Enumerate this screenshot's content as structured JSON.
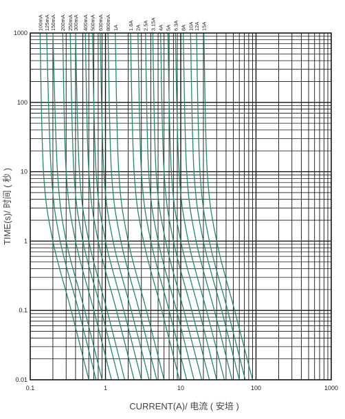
{
  "chart_data": {
    "type": "line",
    "xlabel": "CURRENT(A)/ 电流 ( 安培 )",
    "ylabel": "TIME(s)/ 时间 ( 秒 )",
    "xscale": "log",
    "yscale": "log",
    "xlim": [
      0.1,
      1000
    ],
    "ylim": [
      0.01,
      1000
    ],
    "x_ticks": [
      "0.1",
      "1",
      "10",
      "100",
      "1000"
    ],
    "y_ticks": [
      "1000",
      "100",
      "10",
      "1",
      "0.1",
      "0.01"
    ],
    "grid": true,
    "line_color": "#1f8a6a",
    "series": [
      {
        "name": "100mA",
        "points": [
          [
            0.135,
            1000
          ],
          [
            0.15,
            10
          ],
          [
            0.2,
            1
          ],
          [
            0.35,
            0.1
          ],
          [
            0.6,
            0.01
          ]
        ]
      },
      {
        "name": "125mA",
        "points": [
          [
            0.165,
            1000
          ],
          [
            0.19,
            10
          ],
          [
            0.25,
            1
          ],
          [
            0.44,
            0.1
          ],
          [
            0.75,
            0.01
          ]
        ]
      },
      {
        "name": "150mA",
        "points": [
          [
            0.2,
            1000
          ],
          [
            0.23,
            10
          ],
          [
            0.3,
            1
          ],
          [
            0.53,
            0.1
          ],
          [
            0.9,
            0.01
          ]
        ]
      },
      {
        "name": "200mA",
        "points": [
          [
            0.27,
            1000
          ],
          [
            0.3,
            10
          ],
          [
            0.4,
            1
          ],
          [
            0.7,
            0.1
          ],
          [
            1.2,
            0.01
          ]
        ]
      },
      {
        "name": "250mA",
        "points": [
          [
            0.34,
            1000
          ],
          [
            0.38,
            10
          ],
          [
            0.5,
            1
          ],
          [
            0.88,
            0.1
          ],
          [
            1.5,
            0.01
          ]
        ]
      },
      {
        "name": "300mA",
        "points": [
          [
            0.4,
            1000
          ],
          [
            0.45,
            10
          ],
          [
            0.6,
            1
          ],
          [
            1.05,
            0.1
          ],
          [
            1.8,
            0.01
          ]
        ]
      },
      {
        "name": "400mA",
        "points": [
          [
            0.54,
            1000
          ],
          [
            0.6,
            10
          ],
          [
            0.8,
            1
          ],
          [
            1.4,
            0.1
          ],
          [
            2.4,
            0.01
          ]
        ]
      },
      {
        "name": "500mA",
        "points": [
          [
            0.67,
            1000
          ],
          [
            0.75,
            10
          ],
          [
            1.0,
            1
          ],
          [
            1.75,
            0.1
          ],
          [
            3.0,
            0.01
          ]
        ]
      },
      {
        "name": "630mA",
        "points": [
          [
            0.85,
            1000
          ],
          [
            0.95,
            10
          ],
          [
            1.26,
            1
          ],
          [
            2.2,
            0.1
          ],
          [
            3.8,
            0.01
          ]
        ]
      },
      {
        "name": "800mA",
        "points": [
          [
            1.08,
            1000
          ],
          [
            1.2,
            10
          ],
          [
            1.6,
            1
          ],
          [
            2.8,
            0.1
          ],
          [
            4.8,
            0.01
          ]
        ]
      },
      {
        "name": "1A",
        "points": [
          [
            1.35,
            1000
          ],
          [
            1.5,
            10
          ],
          [
            2.0,
            1
          ],
          [
            3.5,
            0.1
          ],
          [
            6.0,
            0.01
          ]
        ]
      },
      {
        "name": "1.6A",
        "points": [
          [
            2.15,
            1000
          ],
          [
            2.4,
            10
          ],
          [
            3.2,
            1
          ],
          [
            5.6,
            0.1
          ],
          [
            9.6,
            0.01
          ]
        ]
      },
      {
        "name": "2A",
        "points": [
          [
            2.7,
            1000
          ],
          [
            3.0,
            10
          ],
          [
            4.0,
            1
          ],
          [
            7.0,
            0.1
          ],
          [
            12,
            0.01
          ]
        ]
      },
      {
        "name": "2.5A",
        "points": [
          [
            3.4,
            1000
          ],
          [
            3.75,
            10
          ],
          [
            5.0,
            1
          ],
          [
            8.8,
            0.1
          ],
          [
            15,
            0.01
          ]
        ]
      },
      {
        "name": "3.15A",
        "points": [
          [
            4.25,
            1000
          ],
          [
            4.7,
            10
          ],
          [
            6.3,
            1
          ],
          [
            11,
            0.1
          ],
          [
            19,
            0.01
          ]
        ]
      },
      {
        "name": "4A",
        "points": [
          [
            5.4,
            1000
          ],
          [
            6.0,
            10
          ],
          [
            8.0,
            1
          ],
          [
            14,
            0.1
          ],
          [
            24,
            0.01
          ]
        ]
      },
      {
        "name": "5A",
        "points": [
          [
            6.75,
            1000
          ],
          [
            7.5,
            10
          ],
          [
            10,
            1
          ],
          [
            17.5,
            0.1
          ],
          [
            30,
            0.01
          ]
        ]
      },
      {
        "name": "6.3A",
        "points": [
          [
            8.5,
            1000
          ],
          [
            9.5,
            10
          ],
          [
            12.6,
            1
          ],
          [
            22,
            0.1
          ],
          [
            38,
            0.01
          ]
        ]
      },
      {
        "name": "8A",
        "points": [
          [
            10.8,
            1000
          ],
          [
            12,
            10
          ],
          [
            16,
            1
          ],
          [
            28,
            0.1
          ],
          [
            48,
            0.01
          ]
        ]
      },
      {
        "name": "10A",
        "points": [
          [
            13.5,
            1000
          ],
          [
            15,
            10
          ],
          [
            20,
            1
          ],
          [
            35,
            0.1
          ],
          [
            60,
            0.01
          ]
        ]
      },
      {
        "name": "12A",
        "points": [
          [
            16.2,
            1000
          ],
          [
            18,
            10
          ],
          [
            24,
            1
          ],
          [
            42,
            0.1
          ],
          [
            72,
            0.01
          ]
        ]
      },
      {
        "name": "15A",
        "points": [
          [
            20.3,
            1000
          ],
          [
            22.5,
            10
          ],
          [
            30,
            1
          ],
          [
            52,
            0.1
          ],
          [
            90,
            0.01
          ]
        ]
      }
    ]
  }
}
